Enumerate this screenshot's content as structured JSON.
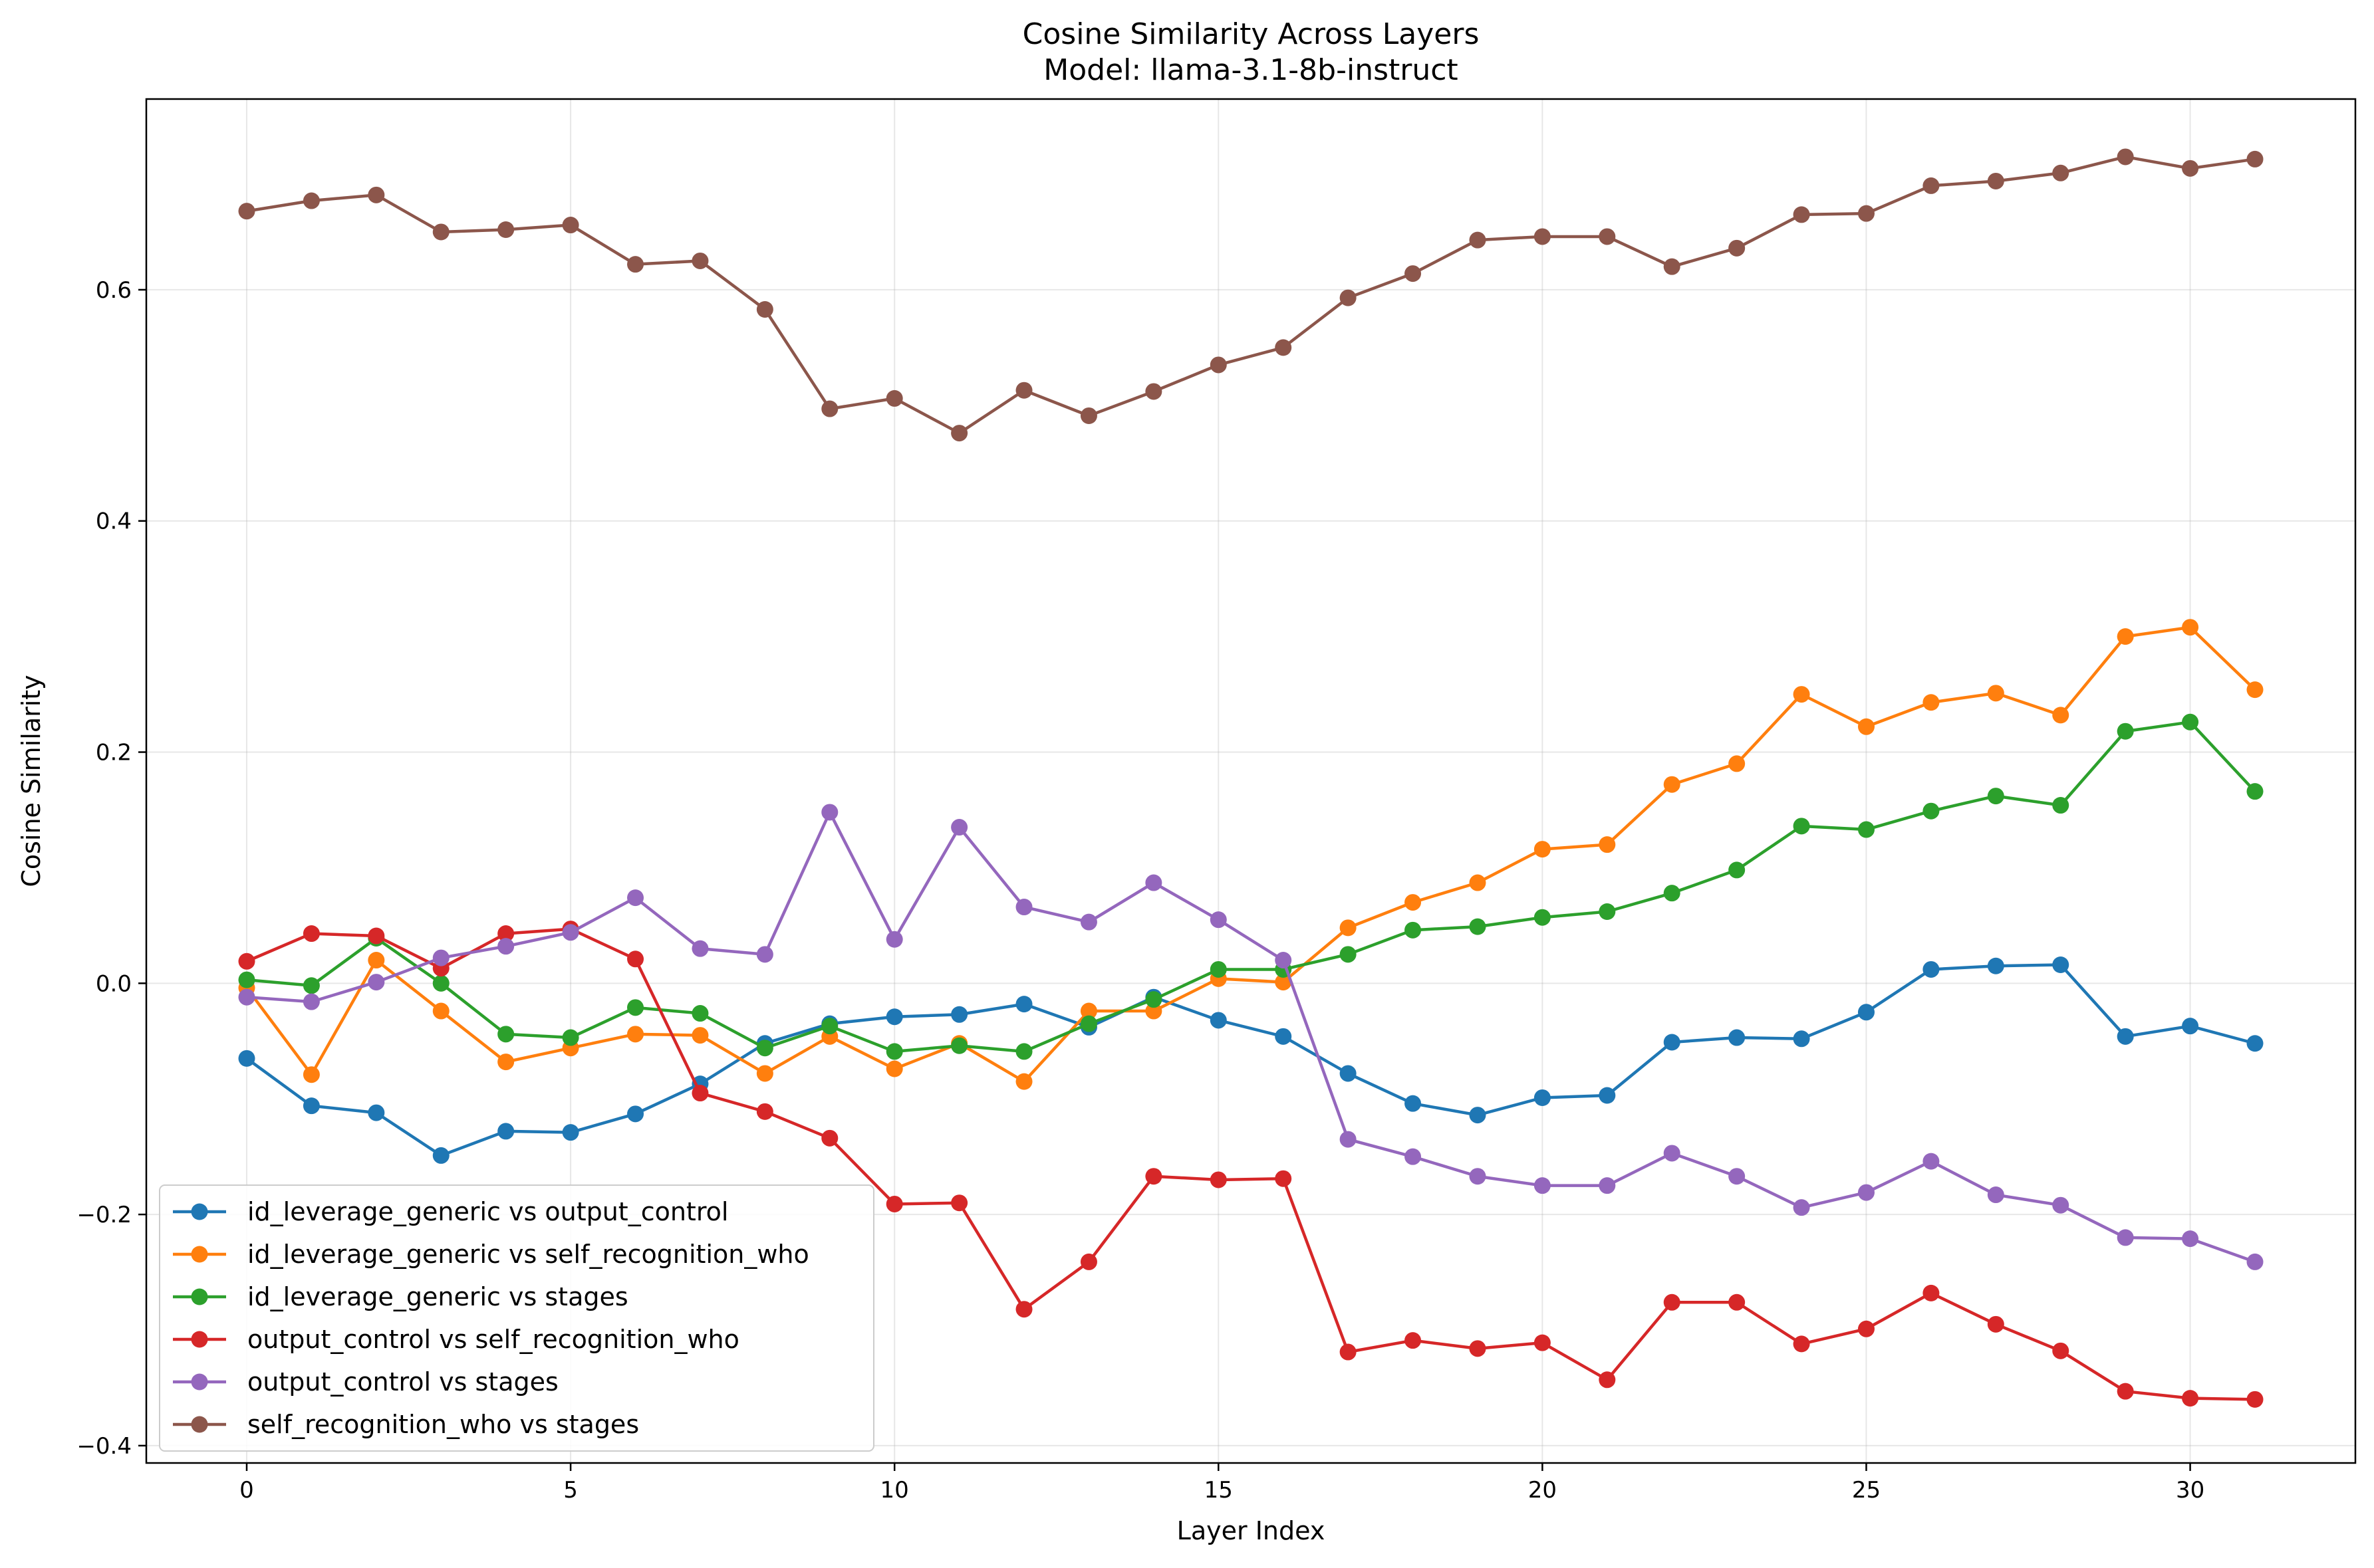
{
  "chart_data": {
    "type": "line",
    "title": "Cosine Similarity Across Layers",
    "subtitle": "Model: llama-3.1-8b-instruct",
    "xlabel": "Layer Index",
    "ylabel": "Cosine Similarity",
    "xlim": [
      -1.55,
      32.55
    ],
    "ylim": [
      -0.415,
      0.765
    ],
    "xticks": [
      0,
      5,
      10,
      15,
      20,
      25,
      30
    ],
    "xtick_labels": [
      "0",
      "5",
      "10",
      "15",
      "20",
      "25",
      "30"
    ],
    "yticks": [
      -0.4,
      -0.2,
      0.0,
      0.2,
      0.4,
      0.6
    ],
    "ytick_labels": [
      "−0.4",
      "−0.2",
      "0.0",
      "0.2",
      "0.4",
      "0.6"
    ],
    "grid": true,
    "legend_position": "lower-left",
    "x": [
      0,
      1,
      2,
      3,
      4,
      5,
      6,
      7,
      8,
      9,
      10,
      11,
      12,
      13,
      14,
      15,
      16,
      17,
      18,
      19,
      20,
      21,
      22,
      23,
      24,
      25,
      26,
      27,
      28,
      29,
      30,
      31
    ],
    "series": [
      {
        "name": "id_leverage_generic vs output_control",
        "color": "#1f77b4",
        "values": [
          -0.065,
          -0.106,
          -0.112,
          -0.149,
          -0.128,
          -0.129,
          -0.113,
          -0.087,
          -0.052,
          -0.035,
          -0.029,
          -0.027,
          -0.018,
          -0.038,
          -0.012,
          -0.032,
          -0.046,
          -0.078,
          -0.104,
          -0.114,
          -0.099,
          -0.097,
          -0.051,
          -0.047,
          -0.048,
          -0.025,
          0.012,
          0.015,
          0.016,
          -0.046,
          -0.037,
          -0.052
        ]
      },
      {
        "name": "id_leverage_generic vs self_recognition_who",
        "color": "#ff7f0e",
        "values": [
          -0.004,
          -0.079,
          0.02,
          -0.024,
          -0.068,
          -0.056,
          -0.044,
          -0.045,
          -0.078,
          -0.046,
          -0.074,
          -0.052,
          -0.085,
          -0.024,
          -0.024,
          0.004,
          0.001,
          0.048,
          0.07,
          0.087,
          0.116,
          0.12,
          0.172,
          0.19,
          0.25,
          0.222,
          0.243,
          0.251,
          0.232,
          0.3,
          0.308,
          0.254
        ]
      },
      {
        "name": "id_leverage_generic vs stages",
        "color": "#2ca02c",
        "values": [
          0.003,
          -0.002,
          0.039,
          0.0,
          -0.044,
          -0.047,
          -0.021,
          -0.026,
          -0.056,
          -0.037,
          -0.059,
          -0.054,
          -0.059,
          -0.035,
          -0.014,
          0.012,
          0.012,
          0.025,
          0.046,
          0.049,
          0.057,
          0.062,
          0.078,
          0.098,
          0.136,
          0.133,
          0.149,
          0.162,
          0.154,
          0.218,
          0.226,
          0.166
        ]
      },
      {
        "name": "output_control vs self_recognition_who",
        "color": "#d62728",
        "values": [
          0.019,
          0.043,
          0.041,
          0.013,
          0.043,
          0.047,
          0.021,
          -0.095,
          -0.111,
          -0.134,
          -0.191,
          -0.19,
          -0.282,
          -0.241,
          -0.167,
          -0.17,
          -0.169,
          -0.319,
          -0.309,
          -0.316,
          -0.311,
          -0.343,
          -0.276,
          -0.276,
          -0.312,
          -0.299,
          -0.268,
          -0.295,
          -0.318,
          -0.353,
          -0.359,
          -0.36
        ]
      },
      {
        "name": "output_control vs stages",
        "color": "#9467bd",
        "values": [
          -0.012,
          -0.016,
          0.001,
          0.022,
          0.032,
          0.044,
          0.074,
          0.03,
          0.025,
          0.148,
          0.038,
          0.135,
          0.066,
          0.053,
          0.087,
          0.055,
          0.02,
          -0.135,
          -0.15,
          -0.167,
          -0.175,
          -0.175,
          -0.147,
          -0.167,
          -0.194,
          -0.181,
          -0.154,
          -0.183,
          -0.192,
          -0.22,
          -0.221,
          -0.241
        ]
      },
      {
        "name": "self_recognition_who vs stages",
        "color": "#8c564b",
        "values": [
          0.668,
          0.677,
          0.682,
          0.65,
          0.652,
          0.656,
          0.622,
          0.625,
          0.583,
          0.497,
          0.506,
          0.476,
          0.513,
          0.491,
          0.512,
          0.535,
          0.55,
          0.593,
          0.614,
          0.643,
          0.646,
          0.646,
          0.62,
          0.636,
          0.665,
          0.666,
          0.69,
          0.694,
          0.701,
          0.715,
          0.705,
          0.713
        ]
      }
    ]
  }
}
